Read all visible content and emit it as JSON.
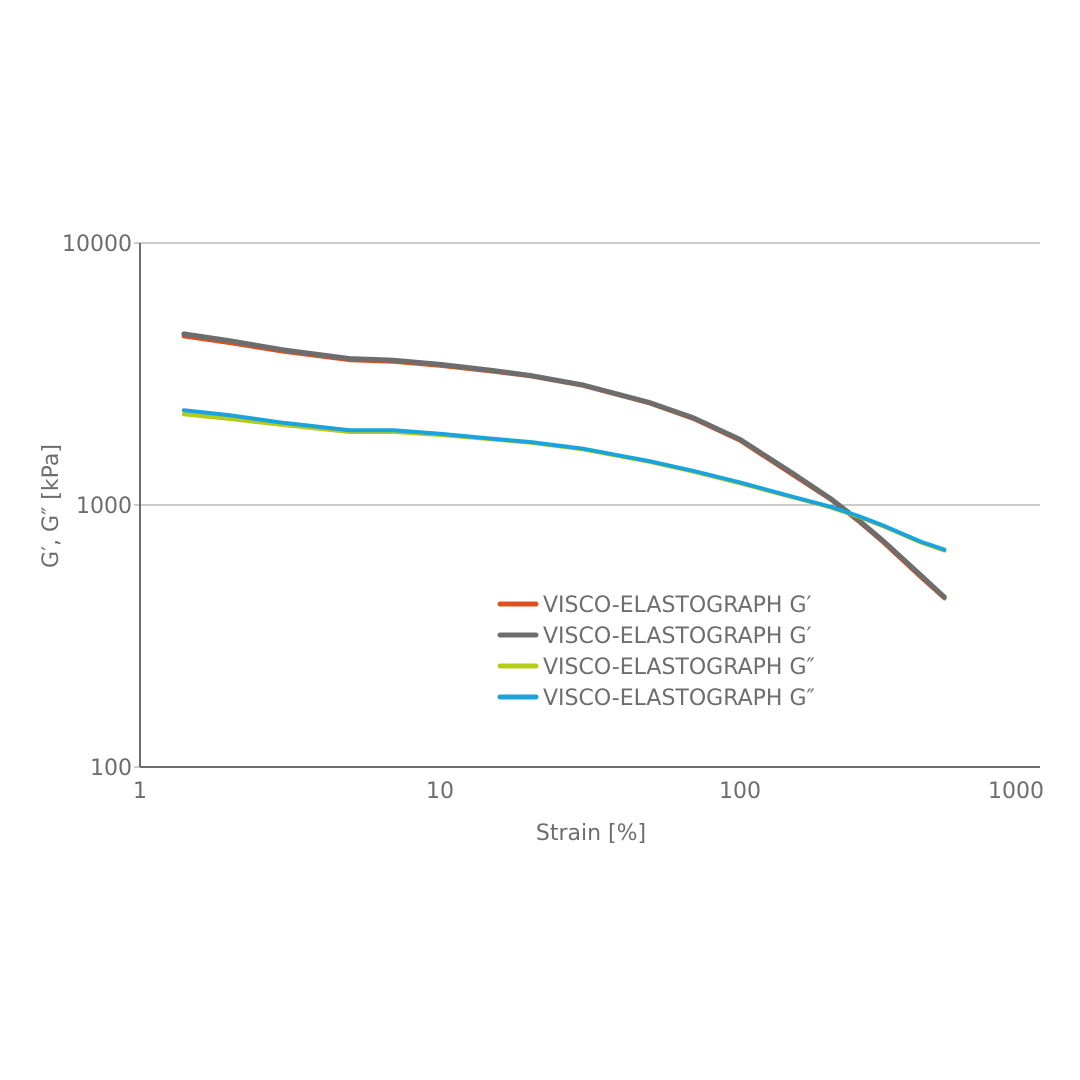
{
  "chart_data": {
    "type": "line",
    "title": "",
    "xlabel": "Strain [%]",
    "ylabel": "G′, G″ [kPa]",
    "xscale": "log",
    "yscale": "log",
    "xlim": [
      1,
      1000
    ],
    "ylim": [
      100,
      10000
    ],
    "xticks": [
      "1",
      "10",
      "100",
      "1000"
    ],
    "yticks": [
      "100",
      "1000",
      "10000"
    ],
    "grid": "horizontal",
    "legend_position": "center-right",
    "series": [
      {
        "name": "VISCO-ELASTOGRAPH G′",
        "color": "#e0501e",
        "x": [
          1.4,
          2,
          3,
          5,
          7,
          10,
          15,
          20,
          30,
          50,
          70,
          100,
          150,
          200,
          250,
          300,
          400,
          480
        ],
        "y": [
          4400,
          4150,
          3850,
          3570,
          3520,
          3400,
          3230,
          3100,
          2850,
          2440,
          2130,
          1760,
          1300,
          1050,
          860,
          720,
          530,
          440
        ]
      },
      {
        "name": "VISCO-ELASTOGRAPH G′",
        "color": "#6d6d6d",
        "x": [
          1.4,
          2,
          3,
          5,
          7,
          10,
          15,
          20,
          30,
          50,
          70,
          100,
          150,
          200,
          250,
          300,
          400,
          480
        ],
        "y": [
          4500,
          4230,
          3910,
          3620,
          3570,
          3440,
          3260,
          3120,
          2870,
          2460,
          2150,
          1780,
          1320,
          1060,
          870,
          730,
          540,
          445
        ]
      },
      {
        "name": "VISCO-ELASTOGRAPH G″",
        "color": "#b5cc18",
        "x": [
          1.4,
          2,
          3,
          5,
          7,
          10,
          15,
          20,
          30,
          50,
          70,
          100,
          150,
          200,
          250,
          300,
          400,
          480
        ],
        "y": [
          2220,
          2130,
          2020,
          1900,
          1900,
          1850,
          1780,
          1730,
          1630,
          1460,
          1340,
          1210,
          1070,
          980,
          900,
          830,
          720,
          670
        ]
      },
      {
        "name": "VISCO-ELASTOGRAPH G″",
        "color": "#1aa3dd",
        "x": [
          1.4,
          2,
          3,
          5,
          7,
          10,
          15,
          20,
          30,
          50,
          70,
          100,
          150,
          200,
          250,
          300,
          400,
          480
        ],
        "y": [
          2300,
          2200,
          2060,
          1930,
          1930,
          1870,
          1790,
          1740,
          1640,
          1470,
          1350,
          1220,
          1075,
          985,
          905,
          835,
          725,
          675
        ]
      }
    ]
  }
}
